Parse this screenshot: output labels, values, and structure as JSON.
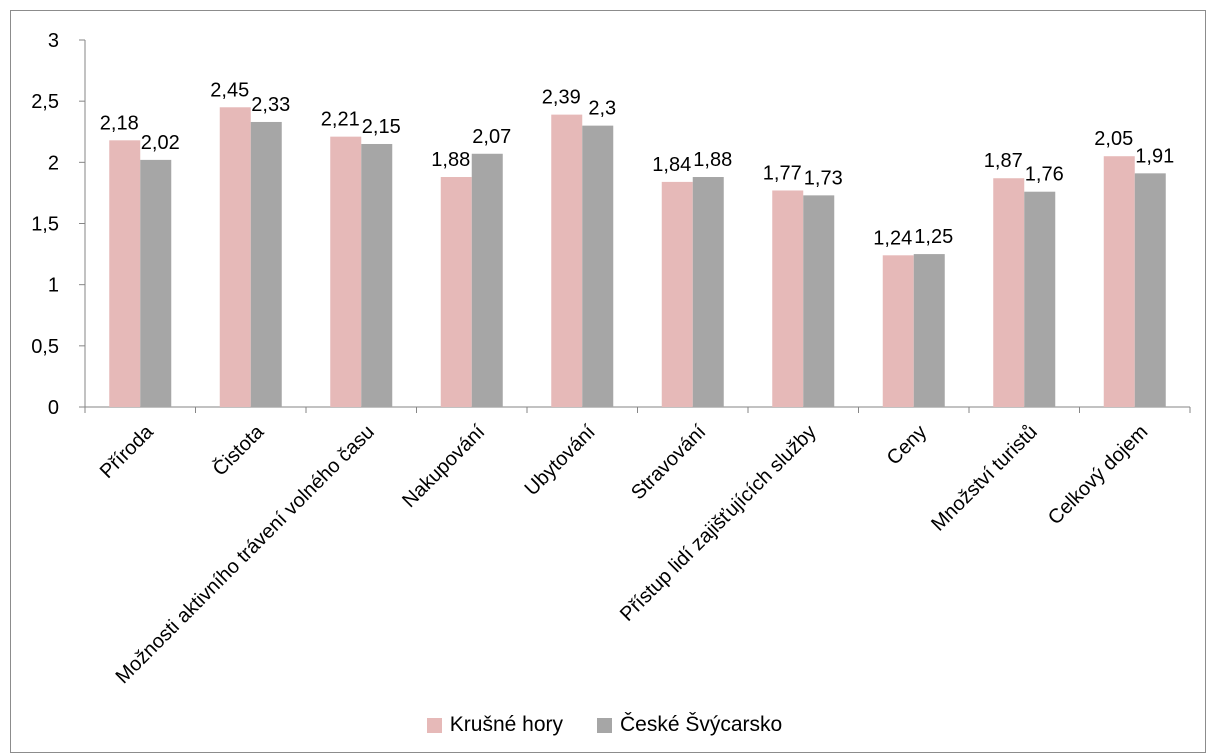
{
  "chart_data": {
    "type": "bar",
    "categories": [
      "Příroda",
      "Čistota",
      "Možnosti aktivního trávení volného času",
      "Nakupování",
      "Ubytování",
      "Stravování",
      "Přístup lidí zajišťujících služby",
      "Ceny",
      "Množství turistů",
      "Celkový dojem"
    ],
    "series": [
      {
        "name": "Krušné hory",
        "color": "#e6b9b8",
        "values": [
          2.18,
          2.45,
          2.21,
          1.88,
          2.39,
          1.84,
          1.77,
          1.24,
          1.87,
          2.05
        ],
        "labels": [
          "2,18",
          "2,45",
          "2,21",
          "1,88",
          "2,39",
          "1,84",
          "1,77",
          "1,24",
          "1,87",
          "2,05"
        ]
      },
      {
        "name": "České Švýcarsko",
        "color": "#a6a6a6",
        "values": [
          2.02,
          2.33,
          2.15,
          2.07,
          2.3,
          1.88,
          1.73,
          1.25,
          1.76,
          1.91
        ],
        "labels": [
          "2,02",
          "2,33",
          "2,15",
          "2,07",
          "2,3",
          "1,88",
          "1,73",
          "1,25",
          "1,76",
          "1,91"
        ]
      }
    ],
    "ylim": [
      0,
      3
    ],
    "yticks": [
      0,
      0.5,
      1,
      1.5,
      2,
      2.5,
      3
    ],
    "ytick_labels": [
      "0",
      "0,5",
      "1",
      "1,5",
      "2",
      "2,5",
      "3"
    ],
    "grid": false,
    "legend": "bottom"
  }
}
